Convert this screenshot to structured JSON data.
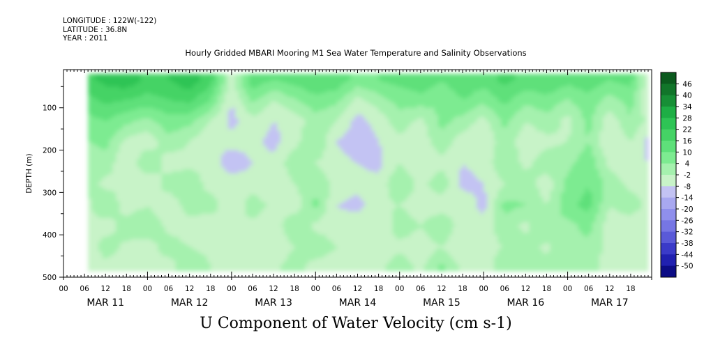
{
  "header": {
    "longitude": "LONGITUDE : 122W(-122)",
    "latitude": "LATITUDE : 36.8N",
    "year": "YEAR : 2011"
  },
  "chart_data": {
    "type": "heatmap",
    "title": "Hourly Gridded MBARI Mooring M1 Sea Water Temperature and Salinity Observations",
    "variable_title": "U Component of Water Velocity (cm s-1)",
    "ylabel": "DEPTH (m)",
    "xlabel": "",
    "x_range_hours": [
      0,
      168
    ],
    "data_x_range_hours": [
      7,
      167
    ],
    "y_range": [
      500,
      10
    ],
    "data_y_range": [
      20,
      485
    ],
    "y_ticks": [
      100,
      200,
      300,
      400,
      500
    ],
    "hour_tick_labels": [
      "00",
      "06",
      "12",
      "18",
      "00",
      "06",
      "12",
      "18",
      "00",
      "06",
      "12",
      "18",
      "00",
      "06",
      "12",
      "18",
      "00",
      "06",
      "12",
      "18",
      "00",
      "06",
      "12",
      "18",
      "00",
      "06",
      "12",
      "18"
    ],
    "day_labels": [
      "MAR 11",
      "MAR 12",
      "MAR 13",
      "MAR 14",
      "MAR 15",
      "MAR 16",
      "MAR 17"
    ],
    "colorbar_levels": [
      "46",
      "40",
      "34",
      "28",
      "22",
      "16",
      "10",
      "4",
      "-2",
      "-8",
      "-14",
      "-20",
      "-26",
      "-32",
      "-38",
      "-44",
      "-50"
    ],
    "colorbar_colors": [
      "#0b5a1e",
      "#11752a",
      "#178f36",
      "#1eae45",
      "#2ec455",
      "#45d365",
      "#5ee07a",
      "#7deb91",
      "#a5f1ae",
      "#c8f3c8",
      "#c3c3f3",
      "#a8a8f0",
      "#8f8fec",
      "#7676e4",
      "#5a5ad8",
      "#3a3ac8",
      "#2020b0",
      "#0c0c85"
    ],
    "columns": [
      {
        "x": 7,
        "u": [
          20,
          14,
          8,
          4,
          -2,
          2,
          -4,
          -2,
          -8,
          -6
        ]
      },
      {
        "x": 12,
        "u": [
          24,
          18,
          10,
          6,
          2,
          -4,
          4,
          -6,
          2,
          -4
        ]
      },
      {
        "x": 18,
        "u": [
          26,
          16,
          6,
          -4,
          -8,
          -2,
          -6,
          2,
          -4,
          -8
        ]
      },
      {
        "x": 24,
        "u": [
          20,
          14,
          2,
          -6,
          4,
          -8,
          -2,
          4,
          -6,
          -2
        ]
      },
      {
        "x": 30,
        "u": [
          22,
          16,
          8,
          2,
          -6,
          2,
          -8,
          -4,
          2,
          -6
        ]
      },
      {
        "x": 36,
        "u": [
          26,
          18,
          6,
          -2,
          -4,
          4,
          2,
          -6,
          -2,
          4
        ]
      },
      {
        "x": 42,
        "u": [
          18,
          10,
          -2,
          -8,
          -4,
          -6,
          2,
          -8,
          -4,
          -2
        ]
      },
      {
        "x": 48,
        "u": [
          -4,
          -8,
          -10,
          -6,
          -12,
          -4,
          -8,
          -2,
          -6,
          -4
        ]
      },
      {
        "x": 54,
        "u": [
          14,
          6,
          -4,
          -6,
          -8,
          -6,
          2,
          -4,
          -2,
          -6
        ]
      },
      {
        "x": 60,
        "u": [
          10,
          -2,
          -8,
          -10,
          -6,
          -8,
          -4,
          -6,
          -8,
          -4
        ]
      },
      {
        "x": 66,
        "u": [
          12,
          4,
          -6,
          -4,
          2,
          -2,
          -6,
          4,
          -2,
          2
        ]
      },
      {
        "x": 72,
        "u": [
          16,
          8,
          2,
          4,
          -2,
          2,
          6,
          -4,
          4,
          -6
        ]
      },
      {
        "x": 78,
        "u": [
          14,
          6,
          -2,
          -8,
          -6,
          -4,
          -8,
          -6,
          -2,
          -8
        ]
      },
      {
        "x": 84,
        "u": [
          8,
          -4,
          -10,
          -12,
          -8,
          -6,
          -10,
          -4,
          -8,
          -6
        ]
      },
      {
        "x": 90,
        "u": [
          10,
          2,
          -6,
          -8,
          -10,
          -6,
          -4,
          -8,
          -6,
          -4
        ]
      },
      {
        "x": 96,
        "u": [
          12,
          6,
          2,
          -4,
          -2,
          4,
          -2,
          2,
          -4,
          2
        ]
      },
      {
        "x": 102,
        "u": [
          14,
          8,
          -4,
          -6,
          -8,
          -4,
          -6,
          -2,
          -6,
          -4
        ]
      },
      {
        "x": 108,
        "u": [
          10,
          4,
          6,
          2,
          -4,
          2,
          -6,
          4,
          -2,
          6
        ]
      },
      {
        "x": 114,
        "u": [
          16,
          10,
          2,
          -6,
          -8,
          -10,
          -4,
          -6,
          -8,
          -4
        ]
      },
      {
        "x": 120,
        "u": [
          12,
          6,
          -4,
          -8,
          -6,
          -8,
          -10,
          -6,
          -4,
          -8
        ]
      },
      {
        "x": 126,
        "u": [
          18,
          12,
          6,
          2,
          4,
          -2,
          6,
          2,
          -2,
          4
        ]
      },
      {
        "x": 132,
        "u": [
          14,
          6,
          -2,
          -6,
          -4,
          2,
          4,
          -4,
          2,
          -2
        ]
      },
      {
        "x": 138,
        "u": [
          16,
          8,
          2,
          -4,
          2,
          -6,
          -2,
          4,
          -4,
          2
        ]
      },
      {
        "x": 144,
        "u": [
          12,
          4,
          -4,
          -2,
          2,
          6,
          8,
          2,
          4,
          -2
        ]
      },
      {
        "x": 150,
        "u": [
          14,
          8,
          6,
          4,
          8,
          10,
          12,
          6,
          2,
          4
        ]
      },
      {
        "x": 156,
        "u": [
          10,
          2,
          -6,
          -8,
          -4,
          2,
          -2,
          -6,
          -4,
          -8
        ]
      },
      {
        "x": 162,
        "u": [
          12,
          6,
          4,
          -2,
          -6,
          -4,
          2,
          -6,
          -2,
          -4
        ]
      },
      {
        "x": 167,
        "u": [
          -6,
          -8,
          -4,
          -10,
          -8,
          -6,
          -4,
          -8,
          -6,
          -4
        ]
      }
    ],
    "column_depths": [
      35,
      80,
      130,
      180,
      230,
      280,
      330,
      380,
      430,
      475
    ]
  }
}
